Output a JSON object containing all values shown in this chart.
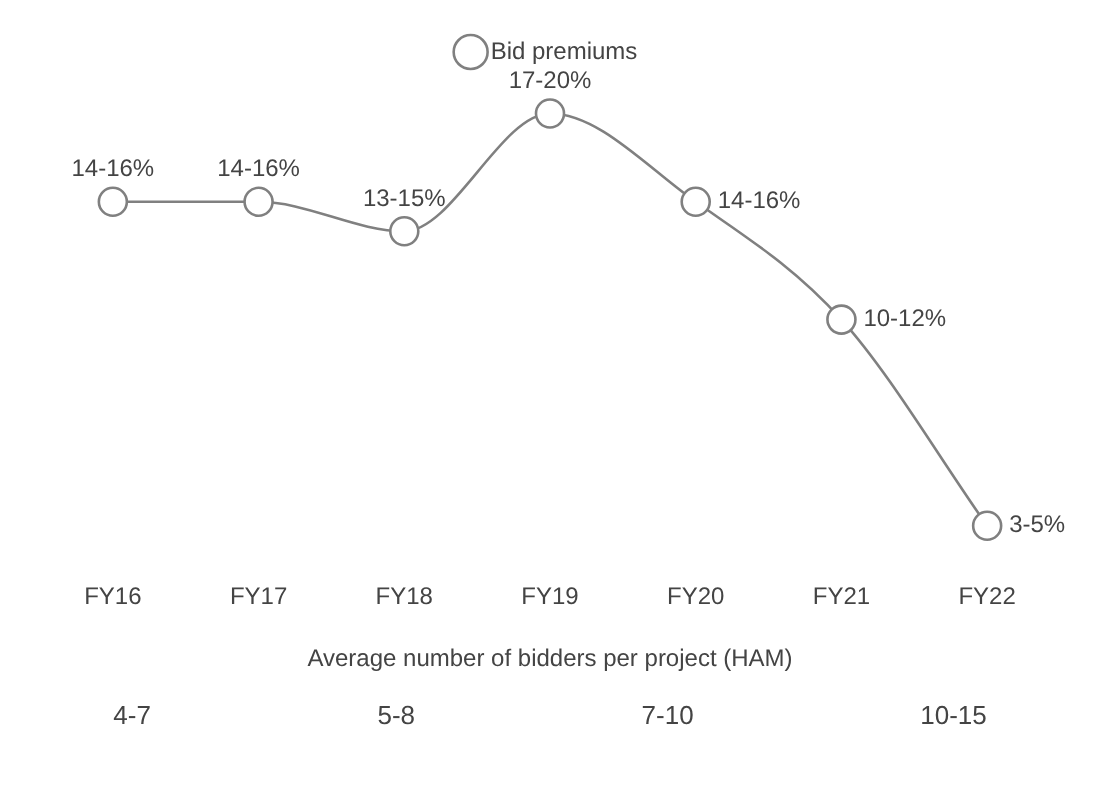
{
  "chart_data": {
    "type": "line",
    "categories": [
      "FY16",
      "FY17",
      "FY18",
      "FY19",
      "FY20",
      "FY21",
      "FY22"
    ],
    "series": [
      {
        "name": "Bid premiums",
        "color": "#808080",
        "values": [
          14,
          14,
          13,
          17,
          14,
          10,
          3
        ],
        "value_labels": [
          "14-16%",
          "14-16%",
          "13-15%",
          "17-20%",
          "14-16%",
          "10-12%",
          "3-5%"
        ]
      }
    ],
    "legend": "top",
    "marker": "circle",
    "line_style": "solid",
    "grid": false,
    "tick_labels": "x",
    "annotations": [
      "Average number of bidders per project (HAM)",
      "4-7",
      "5-8",
      "7-10",
      "10-15"
    ]
  }
}
